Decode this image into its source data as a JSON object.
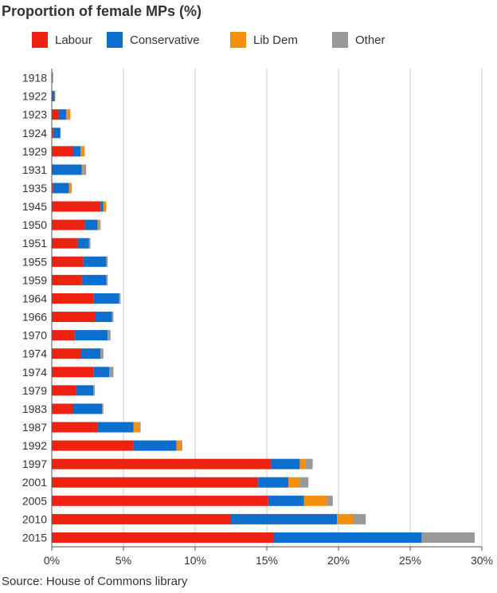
{
  "title": "Proportion of female MPs (%)",
  "source": "Source: House of Commons library",
  "legend": [
    {
      "name": "Labour",
      "color": "#ee2211"
    },
    {
      "name": "Conservative",
      "color": "#0d6fcd"
    },
    {
      "name": "Lib Dem",
      "color": "#f5900f"
    },
    {
      "name": "Other",
      "color": "#999999"
    }
  ],
  "chart_data": {
    "type": "bar",
    "orientation": "horizontal",
    "stacked": true,
    "title": "Proportion of female MPs (%)",
    "xlabel": "",
    "ylabel": "",
    "xlim": [
      0,
      30
    ],
    "x_ticks": [
      "0%",
      "5%",
      "10%",
      "15%",
      "20%",
      "25%",
      "30%"
    ],
    "x_tick_values": [
      0,
      5,
      10,
      15,
      20,
      25,
      30
    ],
    "grid": true,
    "categories": [
      "1918",
      "1922",
      "1923",
      "1924",
      "1929",
      "1931",
      "1935",
      "1945",
      "1950",
      "1951",
      "1955",
      "1959",
      "1964",
      "1966",
      "1970",
      "1974",
      "1974",
      "1979",
      "1983",
      "1987",
      "1992",
      "1997",
      "2001",
      "2005",
      "2010",
      "2015"
    ],
    "series": [
      {
        "name": "Labour",
        "color": "#ee2211",
        "values": [
          0,
          0,
          0.5,
          0.1,
          1.5,
          0,
          0.1,
          3.4,
          2.3,
          1.8,
          2.2,
          2.1,
          2.9,
          3.0,
          1.6,
          2.0,
          2.9,
          1.7,
          1.5,
          3.2,
          5.7,
          15.3,
          14.4,
          15.1,
          12.5,
          15.5
        ]
      },
      {
        "name": "Conservative",
        "color": "#0d6fcd",
        "values": [
          0,
          0.2,
          0.5,
          0.5,
          0.5,
          2.1,
          1.1,
          0.2,
          0.9,
          0.8,
          1.6,
          1.7,
          1.8,
          1.2,
          2.3,
          1.4,
          1.1,
          1.2,
          2.0,
          2.5,
          3.0,
          2.0,
          2.1,
          2.5,
          7.4,
          10.3
        ]
      },
      {
        "name": "Lib Dem",
        "color": "#f5900f",
        "values": [
          0,
          0.05,
          0.3,
          0,
          0.3,
          0.1,
          0.2,
          0.2,
          0.1,
          0,
          0,
          0,
          0,
          0,
          0,
          0,
          0,
          0,
          0,
          0.4,
          0.3,
          0.4,
          0.8,
          1.6,
          1.1,
          0
        ]
      },
      {
        "name": "Other",
        "color": "#999999",
        "values": [
          0.1,
          0,
          0,
          0,
          0,
          0.2,
          0,
          0,
          0.1,
          0.1,
          0.1,
          0.1,
          0.1,
          0.1,
          0.2,
          0.2,
          0.3,
          0.1,
          0.1,
          0.1,
          0.1,
          0.5,
          0.6,
          0.4,
          0.9,
          3.7
        ]
      }
    ]
  }
}
